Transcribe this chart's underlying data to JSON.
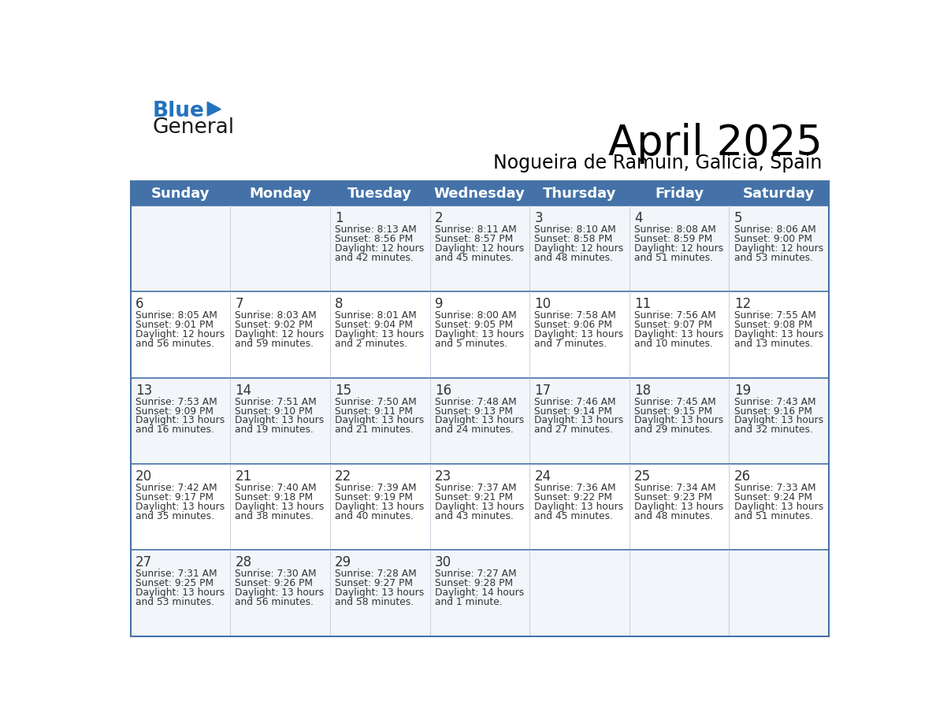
{
  "title": "April 2025",
  "subtitle": "Nogueira de Ramuin, Galicia, Spain",
  "days_of_week": [
    "Sunday",
    "Monday",
    "Tuesday",
    "Wednesday",
    "Thursday",
    "Friday",
    "Saturday"
  ],
  "header_bg": "#4472a8",
  "header_text": "#ffffff",
  "line_color": "#4472a8",
  "text_color": "#333333",
  "calendar_data": [
    [
      {
        "day": "",
        "sunrise": "",
        "sunset": "",
        "daylight": ""
      },
      {
        "day": "",
        "sunrise": "",
        "sunset": "",
        "daylight": ""
      },
      {
        "day": "1",
        "sunrise": "8:13 AM",
        "sunset": "8:56 PM",
        "daylight1": "12 hours",
        "daylight2": "and 42 minutes."
      },
      {
        "day": "2",
        "sunrise": "8:11 AM",
        "sunset": "8:57 PM",
        "daylight1": "12 hours",
        "daylight2": "and 45 minutes."
      },
      {
        "day": "3",
        "sunrise": "8:10 AM",
        "sunset": "8:58 PM",
        "daylight1": "12 hours",
        "daylight2": "and 48 minutes."
      },
      {
        "day": "4",
        "sunrise": "8:08 AM",
        "sunset": "8:59 PM",
        "daylight1": "12 hours",
        "daylight2": "and 51 minutes."
      },
      {
        "day": "5",
        "sunrise": "8:06 AM",
        "sunset": "9:00 PM",
        "daylight1": "12 hours",
        "daylight2": "and 53 minutes."
      }
    ],
    [
      {
        "day": "6",
        "sunrise": "8:05 AM",
        "sunset": "9:01 PM",
        "daylight1": "12 hours",
        "daylight2": "and 56 minutes."
      },
      {
        "day": "7",
        "sunrise": "8:03 AM",
        "sunset": "9:02 PM",
        "daylight1": "12 hours",
        "daylight2": "and 59 minutes."
      },
      {
        "day": "8",
        "sunrise": "8:01 AM",
        "sunset": "9:04 PM",
        "daylight1": "13 hours",
        "daylight2": "and 2 minutes."
      },
      {
        "day": "9",
        "sunrise": "8:00 AM",
        "sunset": "9:05 PM",
        "daylight1": "13 hours",
        "daylight2": "and 5 minutes."
      },
      {
        "day": "10",
        "sunrise": "7:58 AM",
        "sunset": "9:06 PM",
        "daylight1": "13 hours",
        "daylight2": "and 7 minutes."
      },
      {
        "day": "11",
        "sunrise": "7:56 AM",
        "sunset": "9:07 PM",
        "daylight1": "13 hours",
        "daylight2": "and 10 minutes."
      },
      {
        "day": "12",
        "sunrise": "7:55 AM",
        "sunset": "9:08 PM",
        "daylight1": "13 hours",
        "daylight2": "and 13 minutes."
      }
    ],
    [
      {
        "day": "13",
        "sunrise": "7:53 AM",
        "sunset": "9:09 PM",
        "daylight1": "13 hours",
        "daylight2": "and 16 minutes."
      },
      {
        "day": "14",
        "sunrise": "7:51 AM",
        "sunset": "9:10 PM",
        "daylight1": "13 hours",
        "daylight2": "and 19 minutes."
      },
      {
        "day": "15",
        "sunrise": "7:50 AM",
        "sunset": "9:11 PM",
        "daylight1": "13 hours",
        "daylight2": "and 21 minutes."
      },
      {
        "day": "16",
        "sunrise": "7:48 AM",
        "sunset": "9:13 PM",
        "daylight1": "13 hours",
        "daylight2": "and 24 minutes."
      },
      {
        "day": "17",
        "sunrise": "7:46 AM",
        "sunset": "9:14 PM",
        "daylight1": "13 hours",
        "daylight2": "and 27 minutes."
      },
      {
        "day": "18",
        "sunrise": "7:45 AM",
        "sunset": "9:15 PM",
        "daylight1": "13 hours",
        "daylight2": "and 29 minutes."
      },
      {
        "day": "19",
        "sunrise": "7:43 AM",
        "sunset": "9:16 PM",
        "daylight1": "13 hours",
        "daylight2": "and 32 minutes."
      }
    ],
    [
      {
        "day": "20",
        "sunrise": "7:42 AM",
        "sunset": "9:17 PM",
        "daylight1": "13 hours",
        "daylight2": "and 35 minutes."
      },
      {
        "day": "21",
        "sunrise": "7:40 AM",
        "sunset": "9:18 PM",
        "daylight1": "13 hours",
        "daylight2": "and 38 minutes."
      },
      {
        "day": "22",
        "sunrise": "7:39 AM",
        "sunset": "9:19 PM",
        "daylight1": "13 hours",
        "daylight2": "and 40 minutes."
      },
      {
        "day": "23",
        "sunrise": "7:37 AM",
        "sunset": "9:21 PM",
        "daylight1": "13 hours",
        "daylight2": "and 43 minutes."
      },
      {
        "day": "24",
        "sunrise": "7:36 AM",
        "sunset": "9:22 PM",
        "daylight1": "13 hours",
        "daylight2": "and 45 minutes."
      },
      {
        "day": "25",
        "sunrise": "7:34 AM",
        "sunset": "9:23 PM",
        "daylight1": "13 hours",
        "daylight2": "and 48 minutes."
      },
      {
        "day": "26",
        "sunrise": "7:33 AM",
        "sunset": "9:24 PM",
        "daylight1": "13 hours",
        "daylight2": "and 51 minutes."
      }
    ],
    [
      {
        "day": "27",
        "sunrise": "7:31 AM",
        "sunset": "9:25 PM",
        "daylight1": "13 hours",
        "daylight2": "and 53 minutes."
      },
      {
        "day": "28",
        "sunrise": "7:30 AM",
        "sunset": "9:26 PM",
        "daylight1": "13 hours",
        "daylight2": "and 56 minutes."
      },
      {
        "day": "29",
        "sunrise": "7:28 AM",
        "sunset": "9:27 PM",
        "daylight1": "13 hours",
        "daylight2": "and 58 minutes."
      },
      {
        "day": "30",
        "sunrise": "7:27 AM",
        "sunset": "9:28 PM",
        "daylight1": "14 hours",
        "daylight2": "and 1 minute."
      },
      {
        "day": "",
        "sunrise": "",
        "sunset": "",
        "daylight1": "",
        "daylight2": ""
      },
      {
        "day": "",
        "sunrise": "",
        "sunset": "",
        "daylight1": "",
        "daylight2": ""
      },
      {
        "day": "",
        "sunrise": "",
        "sunset": "",
        "daylight1": "",
        "daylight2": ""
      }
    ]
  ],
  "logo_general_color": "#1a1a1a",
  "logo_blue_color": "#2272c0",
  "logo_triangle_color": "#2272c0"
}
